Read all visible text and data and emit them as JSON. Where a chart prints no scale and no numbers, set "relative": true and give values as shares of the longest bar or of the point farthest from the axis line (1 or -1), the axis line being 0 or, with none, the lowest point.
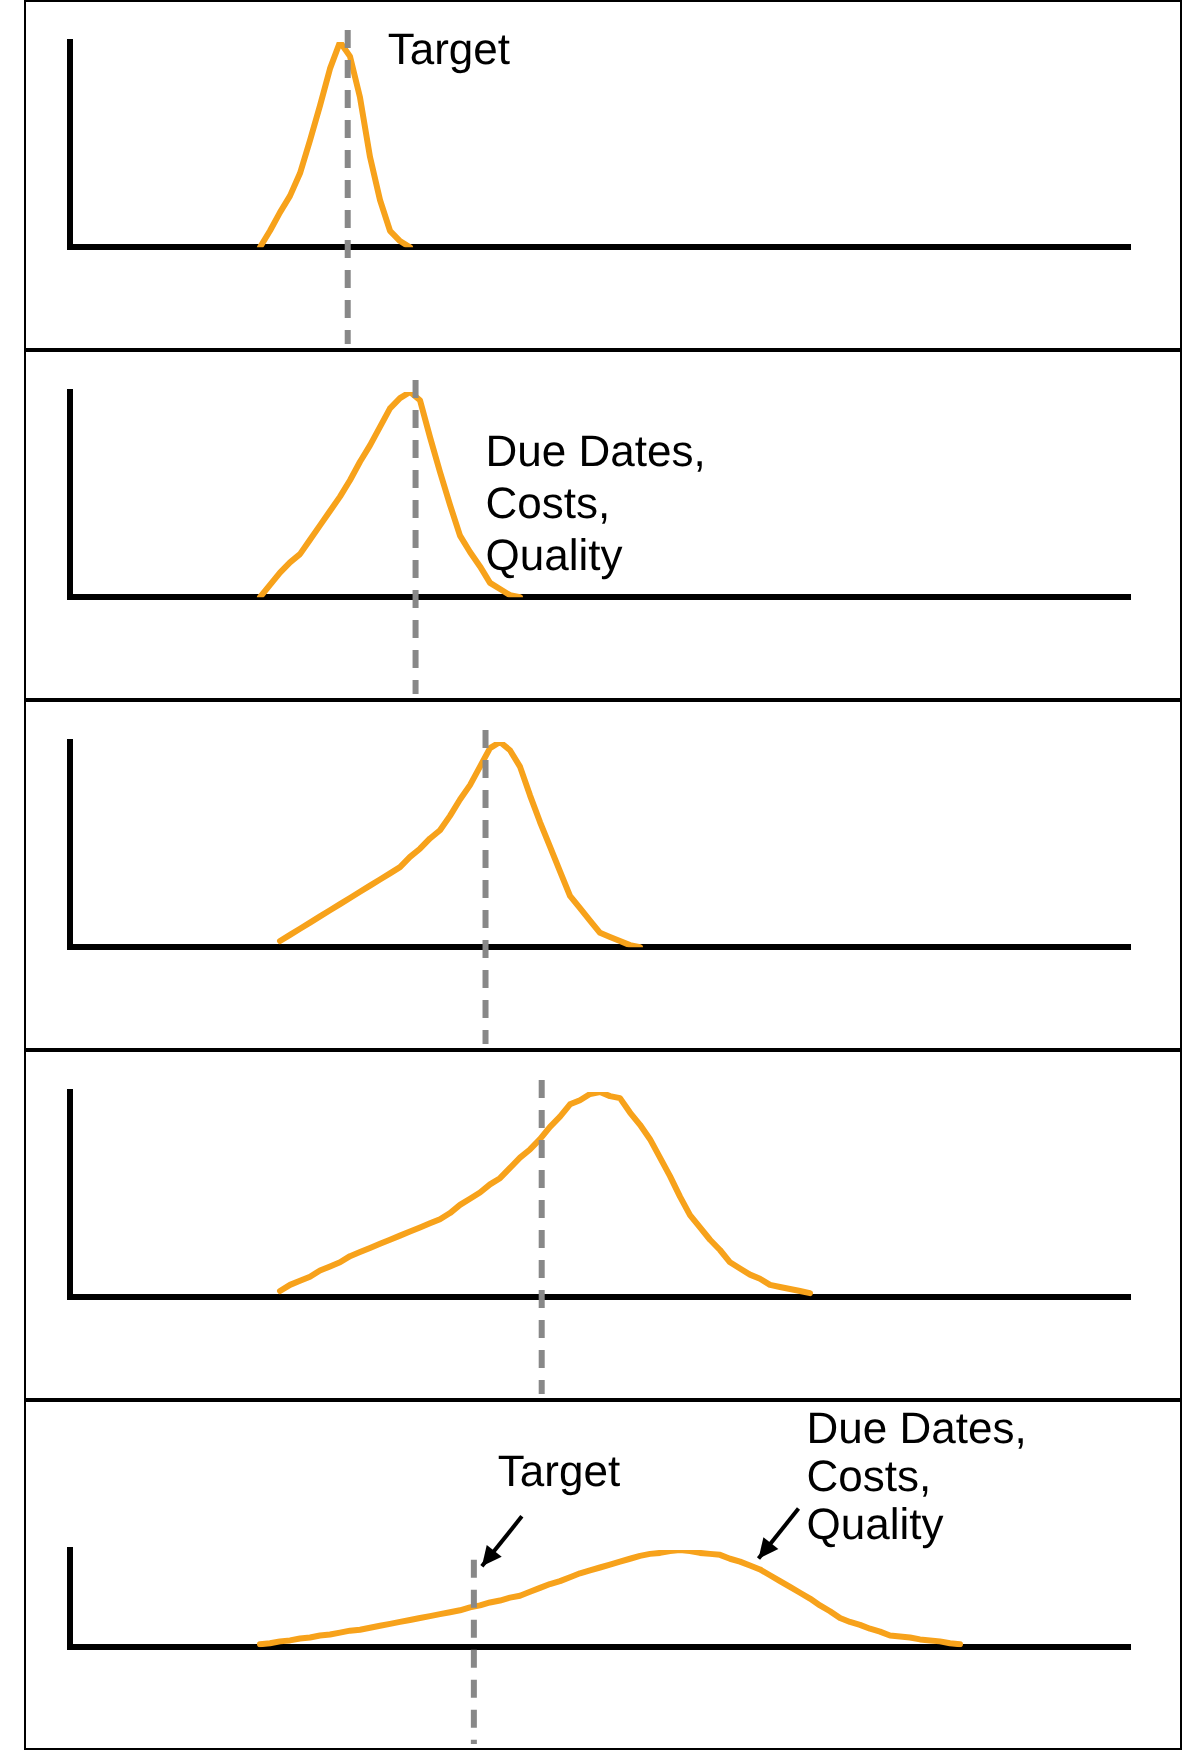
{
  "chart_data": [
    {
      "type": "line",
      "relative": true,
      "categories": [
        null,
        null,
        null,
        null,
        null,
        null,
        null,
        null,
        null,
        null,
        null,
        null,
        null,
        null,
        null,
        null,
        null,
        null,
        null,
        null,
        null,
        null,
        null,
        null,
        null,
        null,
        null,
        null,
        null,
        null,
        null,
        null,
        null,
        null,
        null,
        null,
        null,
        null,
        null,
        null,
        null,
        null,
        null,
        null,
        null,
        null,
        null,
        null,
        null,
        null,
        null,
        null,
        null,
        null,
        null,
        null,
        null,
        null,
        null,
        null,
        null,
        null,
        null,
        null,
        null,
        null,
        null,
        null,
        null,
        null,
        null,
        null,
        null,
        null,
        null,
        null,
        null,
        null,
        null,
        null,
        null,
        null,
        null,
        null,
        null,
        null,
        null,
        null,
        null,
        null,
        null,
        null,
        null,
        null,
        null,
        null,
        null,
        null,
        null,
        null,
        null,
        null,
        null,
        null,
        null,
        null,
        null
      ],
      "series": [
        {
          "color": "#f7a21b",
          "values": [
            null,
            null,
            null,
            null,
            null,
            null,
            null,
            null,
            null,
            null,
            null,
            null,
            null,
            null,
            null,
            null,
            null,
            null,
            null,
            0,
            0.08,
            0.17,
            0.25,
            0.36,
            0.52,
            0.69,
            0.87,
            1,
            0.93,
            0.73,
            0.44,
            0.23,
            0.08,
            0.03,
            0,
            null,
            null,
            null,
            null,
            null,
            null,
            null,
            null,
            null,
            null,
            null,
            null,
            null,
            null,
            null,
            null,
            null,
            null,
            null,
            null,
            null,
            null,
            null,
            null,
            null,
            null,
            null,
            null,
            null,
            null,
            null,
            null,
            null,
            null,
            null,
            null,
            null,
            null,
            null,
            null,
            null,
            null,
            null,
            null,
            null,
            null,
            null,
            null,
            null,
            null,
            null,
            null,
            null,
            null,
            null,
            null,
            null,
            null,
            null,
            null,
            null,
            null,
            null,
            null,
            null,
            null,
            null,
            null,
            null,
            null,
            null,
            null
          ]
        }
      ],
      "annotations": [
        "Target"
      ]
    },
    {
      "type": "line",
      "relative": true,
      "categories": [
        null,
        null,
        null,
        null,
        null,
        null,
        null,
        null,
        null,
        null,
        null,
        null,
        null,
        null,
        null,
        null,
        null,
        null,
        null,
        null,
        null,
        null,
        null,
        null,
        null,
        null,
        null,
        null,
        null,
        null,
        null,
        null,
        null,
        null,
        null,
        null,
        null,
        null,
        null,
        null,
        null,
        null,
        null,
        null,
        null,
        null,
        null,
        null,
        null,
        null,
        null,
        null,
        null,
        null,
        null,
        null,
        null,
        null,
        null,
        null,
        null,
        null,
        null,
        null,
        null,
        null,
        null,
        null,
        null,
        null,
        null,
        null,
        null,
        null,
        null,
        null,
        null,
        null,
        null,
        null,
        null,
        null,
        null,
        null,
        null,
        null,
        null,
        null,
        null,
        null,
        null,
        null,
        null,
        null,
        null,
        null,
        null,
        null,
        null,
        null,
        null,
        null,
        null,
        null,
        null,
        null,
        null
      ],
      "series": [
        {
          "color": "#f7a21b",
          "values": [
            null,
            null,
            null,
            null,
            null,
            null,
            null,
            null,
            null,
            null,
            null,
            null,
            null,
            null,
            null,
            null,
            null,
            null,
            null,
            0,
            0.06,
            0.12,
            0.17,
            0.21,
            0.28,
            0.35,
            0.42,
            0.49,
            0.57,
            0.66,
            0.74,
            0.83,
            0.92,
            0.97,
            1,
            0.96,
            0.78,
            0.61,
            0.45,
            0.3,
            0.22,
            0.15,
            0.07,
            0.04,
            0.01,
            0,
            null,
            null,
            null,
            null,
            null,
            null,
            null,
            null,
            null,
            null,
            null,
            null,
            null,
            null,
            null,
            null,
            null,
            null,
            null,
            null,
            null,
            null,
            null,
            null,
            null,
            null,
            null,
            null,
            null,
            null,
            null,
            null,
            null,
            null,
            null,
            null,
            null,
            null,
            null,
            null,
            null,
            null,
            null,
            null,
            null,
            null,
            null,
            null,
            null,
            null,
            null,
            null,
            null,
            null,
            null,
            null,
            null,
            null,
            null,
            null,
            null
          ]
        }
      ],
      "annotations": [
        "Due Dates,\nCosts,\nQuality"
      ]
    },
    {
      "type": "line",
      "relative": true,
      "categories": [
        null,
        null,
        null,
        null,
        null,
        null,
        null,
        null,
        null,
        null,
        null,
        null,
        null,
        null,
        null,
        null,
        null,
        null,
        null,
        null,
        null,
        null,
        null,
        null,
        null,
        null,
        null,
        null,
        null,
        null,
        null,
        null,
        null,
        null,
        null,
        null,
        null,
        null,
        null,
        null,
        null,
        null,
        null,
        null,
        null,
        null,
        null,
        null,
        null,
        null,
        null,
        null,
        null,
        null,
        null,
        null,
        null,
        null,
        null,
        null,
        null,
        null,
        null,
        null,
        null,
        null,
        null,
        null,
        null,
        null,
        null,
        null,
        null,
        null,
        null,
        null,
        null,
        null,
        null,
        null,
        null,
        null,
        null,
        null,
        null,
        null,
        null,
        null,
        null,
        null,
        null,
        null,
        null,
        null,
        null,
        null,
        null,
        null,
        null,
        null,
        null,
        null,
        null,
        null,
        null,
        null,
        null
      ],
      "series": [
        {
          "color": "#f7a21b",
          "values": [
            null,
            null,
            null,
            null,
            null,
            null,
            null,
            null,
            null,
            null,
            null,
            null,
            null,
            null,
            null,
            null,
            null,
            null,
            null,
            null,
            null,
            0.03,
            0.06,
            0.09,
            0.12,
            0.15,
            0.18,
            0.21,
            0.24,
            0.27,
            0.3,
            0.33,
            0.36,
            0.39,
            0.44,
            0.48,
            0.53,
            0.57,
            0.64,
            0.72,
            0.79,
            0.88,
            0.97,
            1,
            0.96,
            0.88,
            0.74,
            0.61,
            0.49,
            0.37,
            0.25,
            0.19,
            0.13,
            0.07,
            0.05,
            0.03,
            0.01,
            0,
            null,
            null,
            null,
            null,
            null,
            null,
            null,
            null,
            null,
            null,
            null,
            null,
            null,
            null,
            null,
            null,
            null,
            null,
            null,
            null,
            null,
            null,
            null,
            null,
            null,
            null,
            null,
            null,
            null,
            null,
            null,
            null,
            null,
            null,
            null,
            null,
            null,
            null,
            null,
            null,
            null,
            null,
            null,
            null,
            null,
            null,
            null,
            null,
            null
          ]
        }
      ],
      "line_style": "solid"
    },
    {
      "type": "line",
      "relative": true,
      "categories": [
        null,
        null,
        null,
        null,
        null,
        null,
        null,
        null,
        null,
        null,
        null,
        null,
        null,
        null,
        null,
        null,
        null,
        null,
        null,
        null,
        null,
        null,
        null,
        null,
        null,
        null,
        null,
        null,
        null,
        null,
        null,
        null,
        null,
        null,
        null,
        null,
        null,
        null,
        null,
        null,
        null,
        null,
        null,
        null,
        null,
        null,
        null,
        null,
        null,
        null,
        null,
        null,
        null,
        null,
        null,
        null,
        null,
        null,
        null,
        null,
        null,
        null,
        null,
        null,
        null,
        null,
        null,
        null,
        null,
        null,
        null,
        null,
        null,
        null,
        null,
        null,
        null,
        null,
        null,
        null,
        null,
        null,
        null,
        null,
        null,
        null,
        null,
        null,
        null,
        null,
        null,
        null,
        null,
        null,
        null,
        null,
        null,
        null,
        null,
        null,
        null,
        null,
        null,
        null,
        null,
        null,
        null
      ],
      "series": [
        {
          "color": "#f7a21b",
          "values": [
            null,
            null,
            null,
            null,
            null,
            null,
            null,
            null,
            null,
            null,
            null,
            null,
            null,
            null,
            null,
            null,
            null,
            null,
            null,
            null,
            null,
            0.03,
            0.06,
            0.08,
            0.1,
            0.13,
            0.15,
            0.17,
            0.2,
            0.22,
            0.24,
            0.26,
            0.28,
            0.3,
            0.32,
            0.34,
            0.36,
            0.38,
            0.41,
            0.45,
            0.48,
            0.51,
            0.55,
            0.58,
            0.63,
            0.68,
            0.72,
            0.77,
            0.83,
            0.88,
            0.94,
            0.96,
            0.99,
            1,
            0.98,
            0.97,
            0.9,
            0.84,
            0.77,
            0.68,
            0.59,
            0.49,
            0.4,
            0.34,
            0.28,
            0.23,
            0.17,
            0.14,
            0.11,
            0.09,
            0.06,
            0.05,
            0.04,
            0.03,
            0.02,
            null,
            null,
            null,
            null,
            null,
            null,
            null,
            null,
            null,
            null,
            null,
            null,
            null,
            null,
            null,
            null,
            null,
            null,
            null,
            null,
            null,
            null,
            null,
            null,
            null,
            null,
            null,
            null,
            null,
            null,
            null,
            null
          ]
        }
      ],
      "line_style": "solid"
    },
    {
      "type": "line",
      "relative": true,
      "categories": [
        null,
        null,
        null,
        null,
        null,
        null,
        null,
        null,
        null,
        null,
        null,
        null,
        null,
        null,
        null,
        null,
        null,
        null,
        null,
        null,
        null,
        null,
        null,
        null,
        null,
        null,
        null,
        null,
        null,
        null,
        null,
        null,
        null,
        null,
        null,
        null,
        null,
        null,
        null,
        null,
        null,
        null,
        null,
        null,
        null,
        null,
        null,
        null,
        null,
        null,
        null,
        null,
        null,
        null,
        null,
        null,
        null,
        null,
        null,
        null,
        null,
        null,
        null,
        null,
        null,
        null,
        null,
        null,
        null,
        null,
        null,
        null,
        null,
        null,
        null,
        null,
        null,
        null,
        null,
        null,
        null,
        null,
        null,
        null,
        null,
        null,
        null,
        null,
        null,
        null,
        null,
        null,
        null,
        null,
        null,
        null,
        null,
        null,
        null,
        null,
        null,
        null,
        null,
        null,
        null,
        null,
        null
      ],
      "series": [
        {
          "color": "#f7a21b",
          "values": [
            null,
            null,
            null,
            null,
            null,
            null,
            null,
            null,
            null,
            null,
            null,
            null,
            null,
            null,
            null,
            null,
            null,
            null,
            null,
            0.03,
            0.04,
            0.06,
            0.07,
            0.09,
            0.1,
            0.12,
            0.13,
            0.15,
            0.17,
            0.18,
            0.2,
            0.22,
            0.24,
            0.26,
            0.28,
            0.3,
            0.32,
            0.34,
            0.36,
            0.38,
            0.41,
            0.43,
            0.46,
            0.48,
            0.51,
            0.53,
            0.57,
            0.61,
            0.65,
            0.68,
            0.72,
            0.76,
            0.79,
            0.82,
            0.85,
            0.88,
            0.91,
            0.94,
            0.96,
            0.97,
            0.99,
            1,
            0.99,
            0.97,
            0.96,
            0.95,
            0.91,
            0.88,
            0.84,
            0.8,
            0.74,
            0.68,
            0.62,
            0.56,
            0.5,
            0.43,
            0.37,
            0.3,
            0.26,
            0.23,
            0.19,
            0.16,
            0.12,
            0.11,
            0.1,
            0.08,
            0.07,
            0.06,
            0.04,
            0.03,
            null,
            null,
            null,
            null,
            null,
            null,
            null,
            null,
            null,
            null,
            null,
            null,
            null,
            null,
            null,
            null,
            null
          ]
        }
      ],
      "annotations": [
        "Target",
        "Due Dates,\nCosts,\nQuality"
      ]
    }
  ]
}
